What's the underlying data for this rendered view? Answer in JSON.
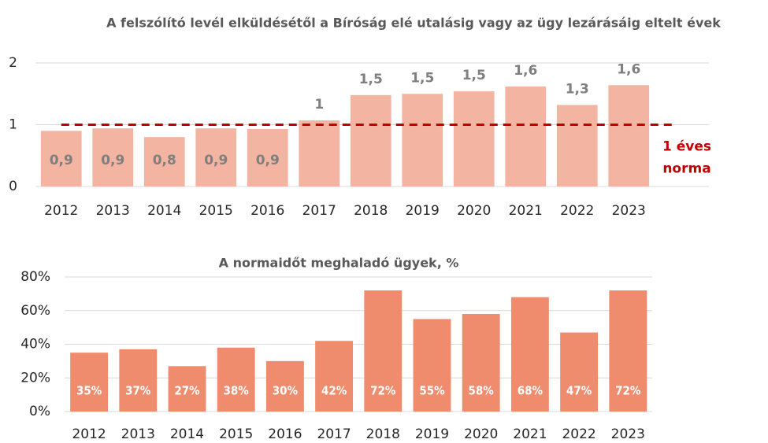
{
  "chart_data": [
    {
      "type": "bar",
      "title": "A felszólító levél elküldésétől a Bíróság elé utalásig vagy az ügy lezárásáig eltelt évek",
      "categories": [
        "2012",
        "2013",
        "2014",
        "2015",
        "2016",
        "2017",
        "2018",
        "2019",
        "2020",
        "2021",
        "2022",
        "2023"
      ],
      "values": [
        0.9,
        0.94,
        0.8,
        0.94,
        0.93,
        1.07,
        1.48,
        1.5,
        1.54,
        1.62,
        1.32,
        1.64
      ],
      "value_labels": [
        "0,9",
        "0,9",
        "0,8",
        "0,9",
        "0,9",
        "1",
        "1,5",
        "1,5",
        "1,5",
        "1,6",
        "1,3",
        "1,6"
      ],
      "color": "#f4b4a2",
      "ylim": [
        0,
        2
      ],
      "yticks": [
        0,
        1,
        2
      ],
      "grid": true,
      "norm": 1,
      "norm_color": "#c00000",
      "norm_label": [
        "1 éves",
        "norma"
      ]
    },
    {
      "type": "bar",
      "title": "A normaidőt meghaladó ügyek, %",
      "categories": [
        "2012",
        "2013",
        "2014",
        "2015",
        "2016",
        "2017",
        "2018",
        "2019",
        "2020",
        "2021",
        "2022",
        "2023"
      ],
      "values": [
        35,
        37,
        27,
        38,
        30,
        42,
        72,
        55,
        58,
        68,
        47,
        72
      ],
      "value_labels": [
        "35%",
        "37%",
        "27%",
        "38%",
        "30%",
        "42%",
        "72%",
        "55%",
        "58%",
        "68%",
        "47%",
        "72%"
      ],
      "color": "#f08c6e",
      "ylim": [
        0,
        80
      ],
      "yticks": [
        {
          "value": 0,
          "label": "0%"
        },
        {
          "value": 20,
          "label": "20%"
        },
        {
          "value": 40,
          "label": "40%"
        },
        {
          "value": 60,
          "label": "60%"
        },
        {
          "value": 80,
          "label": "80%"
        }
      ],
      "grid": true
    }
  ]
}
